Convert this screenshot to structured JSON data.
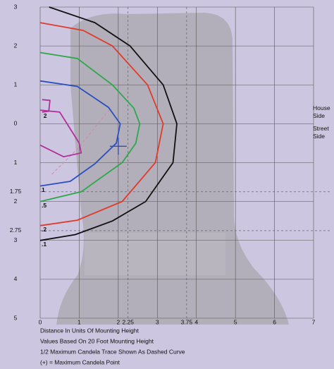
{
  "chart_data": {
    "type": "contour",
    "xlim": [
      0,
      7
    ],
    "ylim": [
      -5,
      3
    ],
    "xticks": [
      0,
      1,
      2,
      2.25,
      3,
      3.75,
      4,
      5,
      6,
      7
    ],
    "yticks": [
      3,
      2,
      1,
      0,
      {
        "value": -1,
        "label": "1"
      },
      {
        "value": -1.75,
        "label": "1.75"
      },
      {
        "value": -2,
        "label": "2"
      },
      {
        "value": -2.75,
        "label": "2.75"
      },
      {
        "value": -3,
        "label": "3"
      },
      {
        "value": -4,
        "label": "4"
      },
      {
        "value": -5,
        "label": "5"
      }
    ],
    "grid": true,
    "series": [
      {
        "label": "2",
        "color": "#b0309a",
        "x": [
          0,
          0.5,
          0.75,
          1.0,
          1.05,
          0.6,
          0,
          null,
          0.05,
          0.25,
          0.22,
          0.05
        ],
        "y": [
          0.35,
          0.3,
          -0.1,
          -0.5,
          -0.75,
          -0.85,
          -0.55,
          null,
          0.62,
          0.6,
          0.32,
          0.3
        ]
      },
      {
        "label": "1",
        "color": "#2a4fc0",
        "x": [
          0,
          0.95,
          1.75,
          2.05,
          1.95,
          1.4,
          0.77,
          0
        ],
        "y": [
          1.1,
          0.96,
          0.42,
          0,
          -0.5,
          -1.03,
          -1.48,
          -1.6
        ]
      },
      {
        "label": ".5",
        "color": "#2ca84a",
        "x": [
          0,
          0.95,
          1.85,
          2.4,
          2.55,
          2.45,
          2.1,
          1.05,
          0
        ],
        "y": [
          1.83,
          1.68,
          1.0,
          0.4,
          0,
          -0.5,
          -1.0,
          -1.75,
          -2.0
        ]
      },
      {
        "label": ".2",
        "color": "#e03a2a",
        "x": [
          0,
          1.1,
          1.85,
          2.75,
          3.15,
          2.95,
          2.1,
          0.95,
          0
        ],
        "y": [
          2.6,
          2.4,
          2.0,
          1.0,
          0,
          -1.0,
          -2.0,
          -2.48,
          -2.62
        ]
      },
      {
        "label": ".1",
        "color": "#111111",
        "x": [
          0.23,
          1.4,
          2.3,
          3.15,
          3.5,
          3.4,
          2.7,
          1.85,
          0.9,
          0
        ],
        "y": [
          3.0,
          2.6,
          2.0,
          1.0,
          0,
          -1.0,
          -2.0,
          -2.5,
          -2.85,
          -3.0
        ]
      }
    ],
    "half_max_trace": {
      "color": "#d08aa8",
      "x": [
        0.3,
        1.0,
        1.8
      ],
      "y": [
        -1.3,
        -0.6,
        0.4
      ]
    },
    "max_candela_point": {
      "x": 2.0,
      "y": -0.58,
      "color": "#2a4fc0"
    },
    "side_labels": [
      "House Side",
      "Street Side"
    ],
    "notes": [
      "Distance In Units Of Mounting Height",
      "Values Based On 20 Foot Mounting Height",
      "1/2 Maximum Candela Trace Shown As Dashed Curve",
      "(+) = Maximum Candela Point"
    ]
  }
}
